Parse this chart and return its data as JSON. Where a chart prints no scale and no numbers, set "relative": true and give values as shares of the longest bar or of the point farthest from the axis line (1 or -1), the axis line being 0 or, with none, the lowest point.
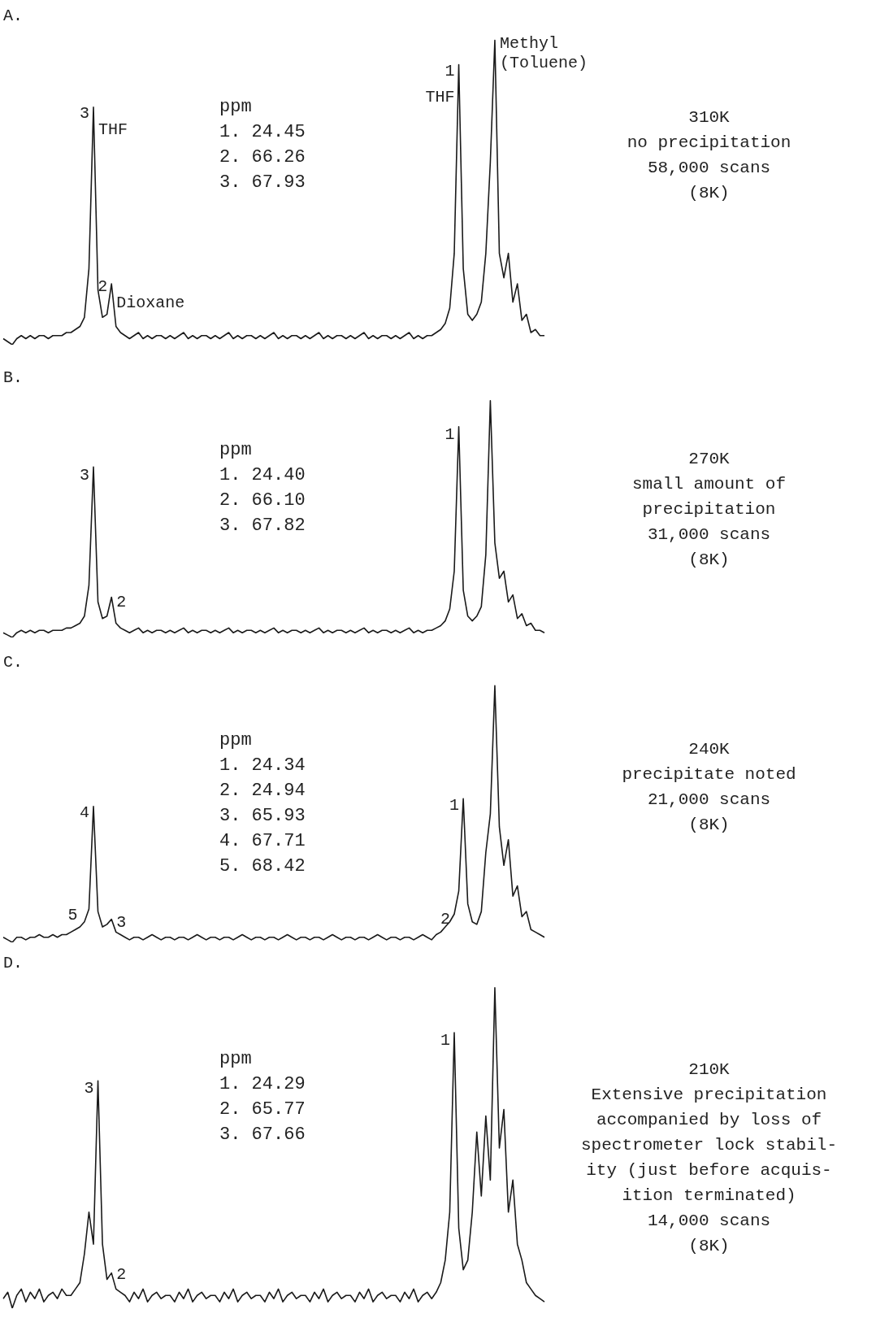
{
  "chart_data": [
    {
      "type": "line",
      "title": "A.",
      "relative": true,
      "marker": "none",
      "color": "#1a1a1a",
      "categories": [
        null,
        null,
        null,
        null,
        null,
        null,
        null,
        null,
        null,
        null,
        null,
        null,
        null,
        null,
        null,
        null,
        null,
        null,
        null,
        null,
        null,
        null,
        null,
        null,
        null,
        null,
        null,
        null,
        null,
        null,
        null,
        null,
        null,
        null,
        null,
        null,
        null,
        null,
        null,
        null,
        null,
        null,
        null,
        null,
        null,
        null,
        null,
        null,
        null,
        null,
        null,
        null,
        null,
        null,
        null,
        null,
        null,
        null,
        null,
        null,
        null,
        null,
        null,
        null,
        null,
        null,
        null,
        null,
        null,
        null,
        null,
        null,
        null,
        null,
        null,
        null,
        null,
        null,
        null,
        null,
        null,
        null,
        null,
        null,
        null,
        null,
        null,
        null,
        null,
        null,
        null,
        null,
        null,
        null,
        null,
        null,
        null,
        null,
        null,
        null,
        null,
        null,
        null,
        null,
        null,
        null,
        null,
        null,
        null,
        null,
        null,
        null,
        null,
        null,
        null,
        null,
        null,
        null,
        null,
        null,
        null
      ],
      "values": [
        0.02,
        0.01,
        0,
        0.02,
        0.03,
        0.02,
        0.03,
        0.02,
        0.03,
        0.03,
        0.02,
        0.03,
        0.03,
        0.03,
        0.04,
        0.04,
        0.05,
        0.06,
        0.09,
        0.25,
        0.78,
        0.18,
        0.09,
        0.1,
        0.2,
        0.06,
        0.04,
        0.03,
        0.02,
        0.03,
        0.04,
        0.02,
        0.03,
        0.02,
        0.03,
        0.03,
        0.02,
        0.03,
        0.02,
        0.03,
        0.04,
        0.02,
        0.03,
        0.02,
        0.03,
        0.03,
        0.02,
        0.03,
        0.02,
        0.03,
        0.04,
        0.02,
        0.03,
        0.02,
        0.03,
        0.03,
        0.02,
        0.03,
        0.02,
        0.03,
        0.04,
        0.02,
        0.03,
        0.02,
        0.03,
        0.03,
        0.02,
        0.03,
        0.02,
        0.03,
        0.04,
        0.02,
        0.03,
        0.02,
        0.03,
        0.03,
        0.02,
        0.03,
        0.02,
        0.03,
        0.04,
        0.02,
        0.03,
        0.02,
        0.03,
        0.03,
        0.02,
        0.03,
        0.02,
        0.03,
        0.04,
        0.02,
        0.03,
        0.02,
        0.03,
        0.03,
        0.04,
        0.05,
        0.07,
        0.12,
        0.3,
        0.92,
        0.25,
        0.1,
        0.08,
        0.1,
        0.14,
        0.3,
        0.6,
        1.0,
        0.3,
        0.22,
        0.3,
        0.14,
        0.2,
        0.08,
        0.1,
        0.04,
        0.05,
        0.03,
        0.03
      ],
      "annotations": [
        "ppm\n1. 24.45\n2. 66.26\n3. 67.93",
        "310K\nno precipitation\n58,000 scans\n(8K)",
        "3",
        "THF",
        "2",
        "Dioxane",
        "1",
        "THF",
        "Methyl\n(Toluene)"
      ]
    },
    {
      "type": "line",
      "title": "B.",
      "relative": true,
      "marker": "none",
      "color": "#1a1a1a",
      "categories": [
        null,
        null,
        null,
        null,
        null,
        null,
        null,
        null,
        null,
        null,
        null,
        null,
        null,
        null,
        null,
        null,
        null,
        null,
        null,
        null,
        null,
        null,
        null,
        null,
        null,
        null,
        null,
        null,
        null,
        null,
        null,
        null,
        null,
        null,
        null,
        null,
        null,
        null,
        null,
        null,
        null,
        null,
        null,
        null,
        null,
        null,
        null,
        null,
        null,
        null,
        null,
        null,
        null,
        null,
        null,
        null,
        null,
        null,
        null,
        null,
        null,
        null,
        null,
        null,
        null,
        null,
        null,
        null,
        null,
        null,
        null,
        null,
        null,
        null,
        null,
        null,
        null,
        null,
        null,
        null,
        null,
        null,
        null,
        null,
        null,
        null,
        null,
        null,
        null,
        null,
        null,
        null,
        null,
        null,
        null,
        null,
        null,
        null,
        null,
        null,
        null,
        null,
        null,
        null,
        null,
        null,
        null,
        null,
        null,
        null,
        null,
        null,
        null,
        null,
        null,
        null,
        null,
        null,
        null,
        null,
        null
      ],
      "values": [
        0.02,
        0.01,
        0,
        0.02,
        0.03,
        0.02,
        0.03,
        0.02,
        0.03,
        0.03,
        0.02,
        0.03,
        0.03,
        0.03,
        0.04,
        0.04,
        0.05,
        0.06,
        0.09,
        0.22,
        0.72,
        0.15,
        0.08,
        0.09,
        0.17,
        0.06,
        0.04,
        0.03,
        0.02,
        0.03,
        0.04,
        0.02,
        0.03,
        0.02,
        0.03,
        0.03,
        0.02,
        0.03,
        0.02,
        0.03,
        0.04,
        0.02,
        0.03,
        0.02,
        0.03,
        0.03,
        0.02,
        0.03,
        0.02,
        0.03,
        0.04,
        0.02,
        0.03,
        0.02,
        0.03,
        0.03,
        0.02,
        0.03,
        0.02,
        0.03,
        0.04,
        0.02,
        0.03,
        0.02,
        0.03,
        0.03,
        0.02,
        0.03,
        0.02,
        0.03,
        0.04,
        0.02,
        0.03,
        0.02,
        0.03,
        0.03,
        0.02,
        0.03,
        0.02,
        0.03,
        0.04,
        0.02,
        0.03,
        0.02,
        0.03,
        0.03,
        0.02,
        0.03,
        0.02,
        0.03,
        0.04,
        0.02,
        0.03,
        0.02,
        0.03,
        0.03,
        0.04,
        0.05,
        0.07,
        0.12,
        0.28,
        0.89,
        0.2,
        0.09,
        0.07,
        0.09,
        0.13,
        0.35,
        1.0,
        0.4,
        0.25,
        0.28,
        0.15,
        0.18,
        0.08,
        0.1,
        0.05,
        0.06,
        0.03,
        0.03,
        0.02
      ],
      "annotations": [
        "ppm\n1. 24.40\n2. 66.10\n3. 67.82",
        "270K\nsmall amount of\nprecipitation\n31,000 scans\n(8K)",
        "3",
        "2",
        "1"
      ]
    },
    {
      "type": "line",
      "title": "C.",
      "relative": true,
      "marker": "none",
      "color": "#1a1a1a",
      "categories": [
        null,
        null,
        null,
        null,
        null,
        null,
        null,
        null,
        null,
        null,
        null,
        null,
        null,
        null,
        null,
        null,
        null,
        null,
        null,
        null,
        null,
        null,
        null,
        null,
        null,
        null,
        null,
        null,
        null,
        null,
        null,
        null,
        null,
        null,
        null,
        null,
        null,
        null,
        null,
        null,
        null,
        null,
        null,
        null,
        null,
        null,
        null,
        null,
        null,
        null,
        null,
        null,
        null,
        null,
        null,
        null,
        null,
        null,
        null,
        null,
        null,
        null,
        null,
        null,
        null,
        null,
        null,
        null,
        null,
        null,
        null,
        null,
        null,
        null,
        null,
        null,
        null,
        null,
        null,
        null,
        null,
        null,
        null,
        null,
        null,
        null,
        null,
        null,
        null,
        null,
        null,
        null,
        null,
        null,
        null,
        null,
        null,
        null,
        null,
        null,
        null,
        null,
        null,
        null,
        null,
        null,
        null,
        null,
        null,
        null,
        null,
        null,
        null,
        null,
        null,
        null,
        null,
        null,
        null,
        null,
        null
      ],
      "values": [
        0.02,
        0.01,
        0,
        0.02,
        0.02,
        0.01,
        0.02,
        0.02,
        0.03,
        0.02,
        0.02,
        0.03,
        0.02,
        0.03,
        0.03,
        0.04,
        0.05,
        0.06,
        0.08,
        0.13,
        0.53,
        0.12,
        0.06,
        0.07,
        0.09,
        0.04,
        0.03,
        0.02,
        0.01,
        0.02,
        0.02,
        0.01,
        0.02,
        0.03,
        0.02,
        0.01,
        0.02,
        0.02,
        0.01,
        0.02,
        0.02,
        0.01,
        0.02,
        0.03,
        0.02,
        0.01,
        0.02,
        0.02,
        0.01,
        0.02,
        0.02,
        0.01,
        0.02,
        0.03,
        0.02,
        0.01,
        0.02,
        0.02,
        0.01,
        0.02,
        0.02,
        0.01,
        0.02,
        0.03,
        0.02,
        0.01,
        0.02,
        0.02,
        0.01,
        0.02,
        0.02,
        0.01,
        0.02,
        0.03,
        0.02,
        0.01,
        0.02,
        0.02,
        0.01,
        0.02,
        0.02,
        0.01,
        0.02,
        0.03,
        0.02,
        0.01,
        0.02,
        0.02,
        0.01,
        0.02,
        0.02,
        0.01,
        0.02,
        0.03,
        0.02,
        0.01,
        0.03,
        0.04,
        0.06,
        0.08,
        0.11,
        0.2,
        0.56,
        0.15,
        0.08,
        0.07,
        0.12,
        0.35,
        0.5,
        1.0,
        0.45,
        0.3,
        0.4,
        0.18,
        0.22,
        0.1,
        0.12,
        0.05,
        0.04,
        0.03,
        0.02
      ],
      "annotations": [
        "ppm\n1. 24.34\n2. 24.94\n3. 65.93\n4. 67.71\n5. 68.42",
        "240K\nprecipitate noted\n21,000 scans\n(8K)",
        "5",
        "4",
        "3",
        "2",
        "1"
      ]
    },
    {
      "type": "line",
      "title": "D.",
      "relative": true,
      "marker": "none",
      "color": "#1a1a1a",
      "categories": [
        null,
        null,
        null,
        null,
        null,
        null,
        null,
        null,
        null,
        null,
        null,
        null,
        null,
        null,
        null,
        null,
        null,
        null,
        null,
        null,
        null,
        null,
        null,
        null,
        null,
        null,
        null,
        null,
        null,
        null,
        null,
        null,
        null,
        null,
        null,
        null,
        null,
        null,
        null,
        null,
        null,
        null,
        null,
        null,
        null,
        null,
        null,
        null,
        null,
        null,
        null,
        null,
        null,
        null,
        null,
        null,
        null,
        null,
        null,
        null,
        null,
        null,
        null,
        null,
        null,
        null,
        null,
        null,
        null,
        null,
        null,
        null,
        null,
        null,
        null,
        null,
        null,
        null,
        null,
        null,
        null,
        null,
        null,
        null,
        null,
        null,
        null,
        null,
        null,
        null,
        null,
        null,
        null,
        null,
        null,
        null,
        null,
        null,
        null,
        null,
        null,
        null,
        null,
        null,
        null,
        null,
        null,
        null,
        null,
        null,
        null,
        null,
        null,
        null,
        null,
        null,
        null,
        null,
        null,
        null,
        null
      ],
      "values": [
        0.03,
        0.05,
        0,
        0.04,
        0.06,
        0.02,
        0.05,
        0.03,
        0.06,
        0.02,
        0.04,
        0.05,
        0.03,
        0.06,
        0.04,
        0.04,
        0.06,
        0.08,
        0.17,
        0.3,
        0.2,
        0.71,
        0.2,
        0.09,
        0.11,
        0.06,
        0.05,
        0.04,
        0.02,
        0.05,
        0.03,
        0.06,
        0.02,
        0.04,
        0.05,
        0.03,
        0.04,
        0.04,
        0.02,
        0.05,
        0.03,
        0.06,
        0.02,
        0.04,
        0.05,
        0.03,
        0.04,
        0.04,
        0.02,
        0.05,
        0.03,
        0.06,
        0.02,
        0.04,
        0.05,
        0.03,
        0.04,
        0.04,
        0.02,
        0.05,
        0.03,
        0.06,
        0.02,
        0.04,
        0.05,
        0.03,
        0.04,
        0.04,
        0.02,
        0.05,
        0.03,
        0.06,
        0.02,
        0.04,
        0.05,
        0.03,
        0.04,
        0.04,
        0.02,
        0.05,
        0.03,
        0.06,
        0.02,
        0.04,
        0.05,
        0.03,
        0.04,
        0.04,
        0.02,
        0.05,
        0.03,
        0.06,
        0.02,
        0.04,
        0.05,
        0.03,
        0.05,
        0.08,
        0.15,
        0.3,
        0.86,
        0.25,
        0.12,
        0.15,
        0.3,
        0.55,
        0.35,
        0.6,
        0.4,
        1.0,
        0.5,
        0.62,
        0.3,
        0.4,
        0.2,
        0.15,
        0.08,
        0.06,
        0.04,
        0.03,
        0.02
      ],
      "annotations": [
        "ppm\n1. 24.29\n2. 65.77\n3. 67.66",
        "210K\nExtensive precipitation\naccompanied by loss of\nspectrometer lock stabil-\nity (just before acquis-\nition terminated)\n14,000 scans\n(8K)",
        "3",
        "2",
        "1"
      ]
    }
  ]
}
